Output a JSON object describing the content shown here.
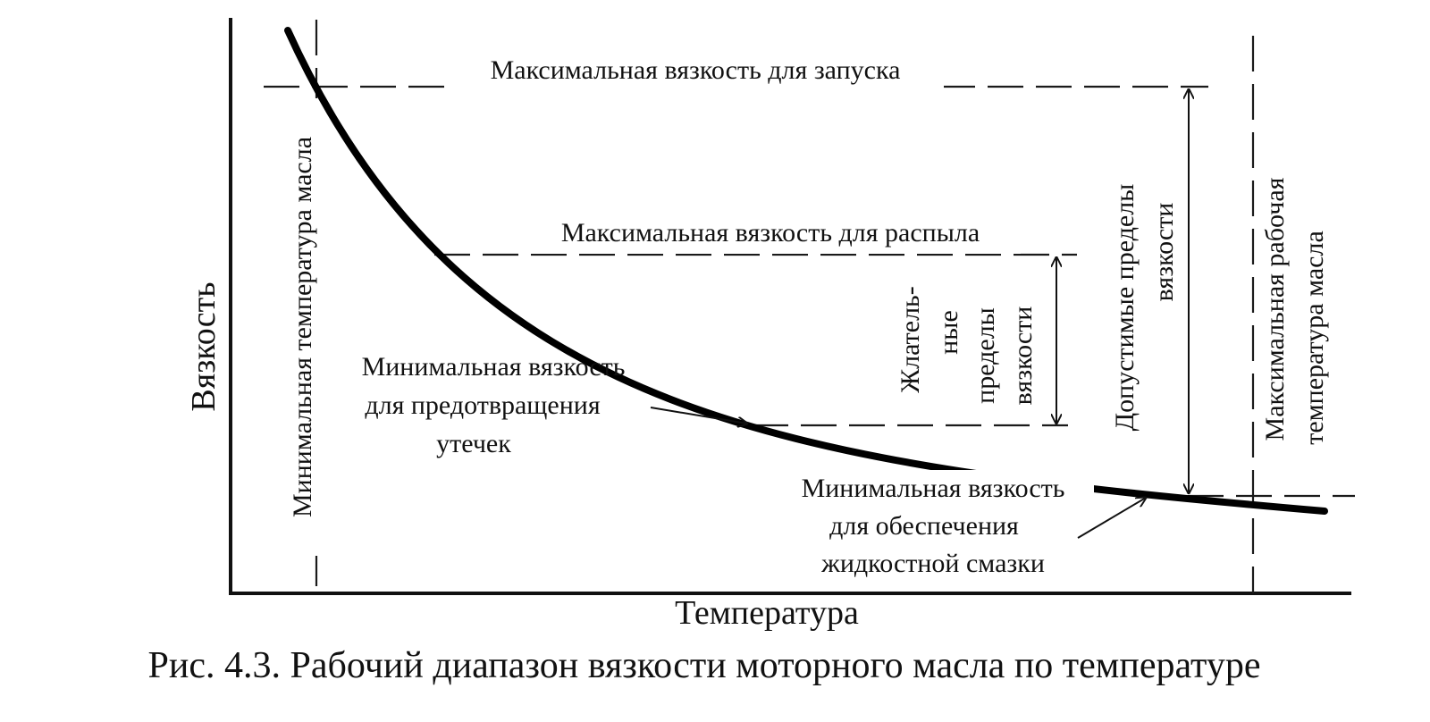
{
  "figure": {
    "caption": "Рис. 4.3. Рабочий диапазон вязкости моторного масла по температуре",
    "y_axis_label": "Вязкость",
    "x_axis_label": "Температура",
    "labels": {
      "max_start": "Максимальная вязкость для запуска",
      "max_spray": "Максимальная вязкость для распыла",
      "min_temp": "Минимальная температура масла",
      "max_temp_line1": "Максимальная рабочая",
      "max_temp_line2": "температура масла",
      "desired_line1": "Жлатель-",
      "desired_line2": "ные",
      "desired_line3": "пределы",
      "desired_line4": "вязкости",
      "allowed_line1": "Допустимые пределы",
      "allowed_line2": "вязкости",
      "min_leak_line1": "Минимальная вязкость",
      "min_leak_line2": "для предотвращения",
      "min_leak_line3": "утечек",
      "min_lube_line1": "Минимальная вязкость",
      "min_lube_line2": "для обеспечения",
      "min_lube_line3": "жидкостной смазки"
    }
  }
}
